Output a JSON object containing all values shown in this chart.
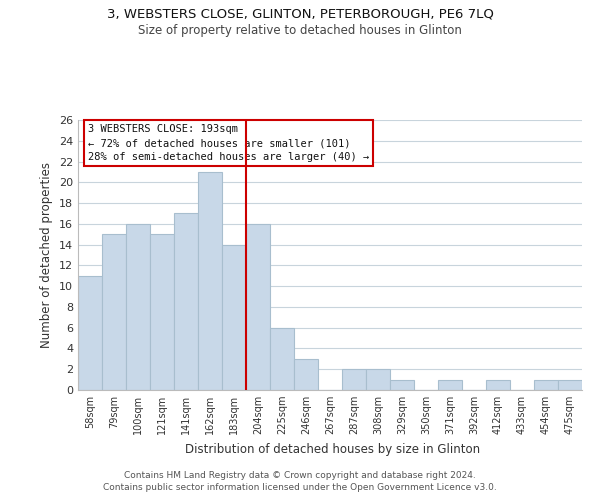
{
  "title": "3, WEBSTERS CLOSE, GLINTON, PETERBOROUGH, PE6 7LQ",
  "subtitle": "Size of property relative to detached houses in Glinton",
  "xlabel": "Distribution of detached houses by size in Glinton",
  "ylabel": "Number of detached properties",
  "bar_color": "#c8d8e8",
  "bar_edge_color": "#a8bece",
  "background_color": "#ffffff",
  "grid_color": "#c8d4dc",
  "categories": [
    "58sqm",
    "79sqm",
    "100sqm",
    "121sqm",
    "141sqm",
    "162sqm",
    "183sqm",
    "204sqm",
    "225sqm",
    "246sqm",
    "267sqm",
    "287sqm",
    "308sqm",
    "329sqm",
    "350sqm",
    "371sqm",
    "392sqm",
    "412sqm",
    "433sqm",
    "454sqm",
    "475sqm"
  ],
  "values": [
    11,
    15,
    16,
    15,
    17,
    21,
    14,
    16,
    6,
    3,
    0,
    2,
    2,
    1,
    0,
    1,
    0,
    1,
    0,
    1,
    1
  ],
  "ylim": [
    0,
    26
  ],
  "yticks": [
    0,
    2,
    4,
    6,
    8,
    10,
    12,
    14,
    16,
    18,
    20,
    22,
    24,
    26
  ],
  "annotation_title": "3 WEBSTERS CLOSE: 193sqm",
  "annotation_line1": "← 72% of detached houses are smaller (101)",
  "annotation_line2": "28% of semi-detached houses are larger (40) →",
  "footer_line1": "Contains HM Land Registry data © Crown copyright and database right 2024.",
  "footer_line2": "Contains public sector information licensed under the Open Government Licence v3.0.",
  "vline_color": "#cc0000",
  "vline_x": 6.5
}
